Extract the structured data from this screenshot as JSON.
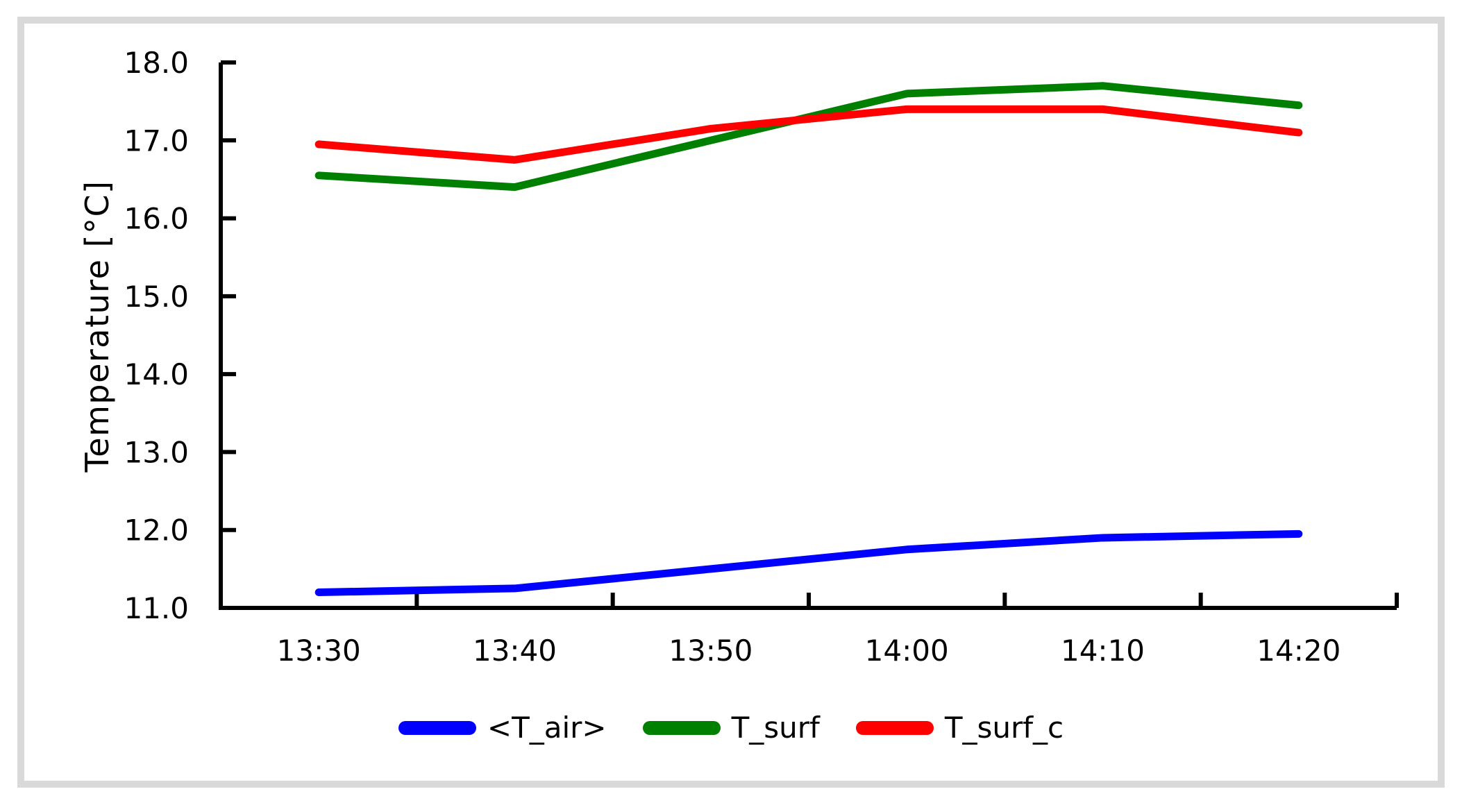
{
  "page": {
    "background_color": "#ffffff",
    "frame_color": "#d9d9d9",
    "text_color": "#000000",
    "axis_color": "#000000"
  },
  "chart_data": {
    "type": "line",
    "title": "",
    "xlabel": "",
    "ylabel": "Temperature [°C]",
    "categories": [
      "13:30",
      "13:40",
      "13:50",
      "14:00",
      "14:10",
      "14:20"
    ],
    "series": [
      {
        "name": "<T_air>",
        "color": "#0000ff",
        "values": [
          11.2,
          11.25,
          11.5,
          11.75,
          11.9,
          11.95
        ]
      },
      {
        "name": "T_surf",
        "color": "#008000",
        "values": [
          16.55,
          16.4,
          17.0,
          17.6,
          17.7,
          17.45
        ]
      },
      {
        "name": "T_surf_c",
        "color": "#ff0000",
        "values": [
          16.95,
          16.75,
          17.15,
          17.4,
          17.4,
          17.1
        ]
      }
    ],
    "ylim": [
      11.0,
      18.0
    ],
    "ytick_step": 1.0,
    "y_tick_labels": [
      "18.0",
      "17.0",
      "16.0",
      "15.0",
      "14.0",
      "13.0",
      "12.0",
      "11.0"
    ],
    "grid": false,
    "legend_position": "bottom",
    "axis_style": "left-and-bottom-only, inside tick marks, ticks between x categories"
  }
}
